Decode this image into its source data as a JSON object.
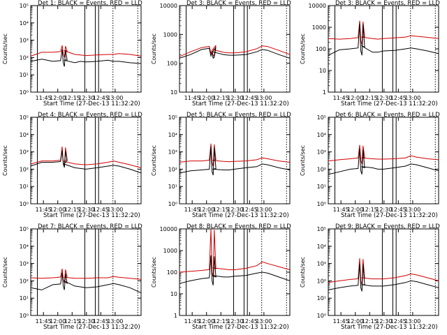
{
  "ylabel": "Counts/sec",
  "xlabel": "Start Time (27-Dec-13 11:32:20)",
  "legend_text": "BLACK = Events, RED = LLD",
  "series_colors": {
    "events": "#000000",
    "lld": "#d00000"
  },
  "x_ticks": [
    "11:45",
    "12:00",
    "12:15",
    "12:30",
    "12:45",
    "13:00"
  ],
  "chart_data": [
    {
      "type": "line",
      "title": "Det 1: BLACK = Events, RED = LLD",
      "ylog": true,
      "ylim": [
        1,
        100000
      ],
      "yticks": [
        {
          "v": 1,
          "l": "10⁰"
        },
        {
          "v": 10,
          "l": "10¹"
        },
        {
          "v": 100,
          "l": "10²"
        },
        {
          "v": 1000,
          "l": "10³"
        },
        {
          "v": 10000,
          "l": "10⁴"
        },
        {
          "v": 100000,
          "l": "10⁵"
        }
      ],
      "flare_peak": {
        "events": 300,
        "lld": 500
      },
      "x": [
        0,
        10,
        20,
        30,
        40,
        45,
        50,
        60,
        70,
        75,
        80,
        90,
        100
      ],
      "events": [
        60,
        80,
        60,
        70,
        50,
        60,
        55,
        60,
        70,
        60,
        60,
        50,
        45
      ],
      "lld": [
        120,
        200,
        200,
        250,
        150,
        140,
        130,
        140,
        150,
        150,
        170,
        150,
        120
      ]
    },
    {
      "type": "line",
      "title": "Det 3: BLACK = Events, RED = LLD",
      "ylog": true,
      "ylim": [
        10,
        10000
      ],
      "yticks": [
        {
          "v": 10,
          "l": "10"
        },
        {
          "v": 100,
          "l": "100"
        },
        {
          "v": 1000,
          "l": "1000"
        },
        {
          "v": 10000,
          "l": "10000"
        }
      ],
      "flare_peak": {
        "events": 180,
        "lld": 220
      },
      "x": [
        0,
        10,
        20,
        30,
        40,
        45,
        50,
        60,
        70,
        75,
        80,
        90,
        100
      ],
      "events": [
        150,
        200,
        300,
        250,
        200,
        190,
        190,
        200,
        250,
        300,
        280,
        200,
        150
      ],
      "lld": [
        170,
        250,
        350,
        300,
        240,
        230,
        230,
        250,
        320,
        400,
        380,
        280,
        200
      ]
    },
    {
      "type": "line",
      "title": "Det 3: BLACK = Events, RED = LLD",
      "ylog": true,
      "ylim": [
        1,
        10000
      ],
      "yticks": [
        {
          "v": 1,
          "l": "1"
        },
        {
          "v": 10,
          "l": "10"
        },
        {
          "v": 100,
          "l": "100"
        },
        {
          "v": 1000,
          "l": "1000"
        },
        {
          "v": 10000,
          "l": "10000"
        }
      ],
      "flare_peak": {
        "events": 1500,
        "lld": 2000
      },
      "x": [
        0,
        10,
        20,
        30,
        40,
        45,
        50,
        60,
        70,
        75,
        80,
        90,
        100
      ],
      "events": [
        50,
        90,
        100,
        140,
        70,
        70,
        80,
        85,
        100,
        110,
        100,
        80,
        60
      ],
      "lld": [
        300,
        280,
        300,
        350,
        300,
        280,
        300,
        320,
        350,
        400,
        380,
        340,
        300
      ]
    },
    {
      "type": "line",
      "title": "Det 4: BLACK = Events, RED = LLD",
      "ylog": true,
      "ylim": [
        1,
        100000
      ],
      "yticks": [
        {
          "v": 1,
          "l": "10⁰"
        },
        {
          "v": 10,
          "l": "10¹"
        },
        {
          "v": 100,
          "l": "10²"
        },
        {
          "v": 1000,
          "l": "10³"
        },
        {
          "v": 10000,
          "l": "10⁴"
        },
        {
          "v": 100000,
          "l": "10⁵"
        }
      ],
      "flare_peak": {
        "events": 1200,
        "lld": 2000
      },
      "x": [
        0,
        10,
        20,
        30,
        40,
        45,
        50,
        60,
        70,
        75,
        80,
        90,
        100
      ],
      "events": [
        150,
        250,
        250,
        200,
        120,
        110,
        100,
        120,
        150,
        170,
        150,
        100,
        60
      ],
      "lld": [
        200,
        300,
        300,
        280,
        200,
        190,
        180,
        200,
        250,
        300,
        250,
        180,
        120
      ]
    },
    {
      "type": "line",
      "title": "Det 5: BLACK = Events, RED = LLD",
      "ylog": true,
      "ylim": [
        1,
        100000
      ],
      "yticks": [
        {
          "v": 1,
          "l": "10⁰"
        },
        {
          "v": 10,
          "l": "10¹"
        },
        {
          "v": 100,
          "l": "10²"
        },
        {
          "v": 1000,
          "l": "10³"
        },
        {
          "v": 10000,
          "l": "10⁴"
        },
        {
          "v": 100000,
          "l": "10⁵"
        }
      ],
      "flare_peak": {
        "events": 2000,
        "lld": 3000
      },
      "x": [
        0,
        10,
        20,
        30,
        40,
        45,
        50,
        60,
        70,
        75,
        80,
        90,
        100
      ],
      "events": [
        60,
        80,
        90,
        100,
        90,
        90,
        100,
        120,
        140,
        200,
        180,
        120,
        90
      ],
      "lld": [
        250,
        300,
        300,
        320,
        280,
        270,
        280,
        300,
        350,
        450,
        400,
        300,
        250
      ]
    },
    {
      "type": "line",
      "title": "Det 6: BLACK = Events, RED = LLD",
      "ylog": true,
      "ylim": [
        1,
        100000
      ],
      "yticks": [
        {
          "v": 1,
          "l": "10⁰"
        },
        {
          "v": 10,
          "l": "10¹"
        },
        {
          "v": 100,
          "l": "10²"
        },
        {
          "v": 1000,
          "l": "10³"
        },
        {
          "v": 10000,
          "l": "10⁴"
        },
        {
          "v": 100000,
          "l": "10⁵"
        }
      ],
      "flare_peak": {
        "events": 1500,
        "lld": 2500
      },
      "x": [
        0,
        10,
        20,
        30,
        40,
        45,
        50,
        60,
        70,
        75,
        80,
        90,
        100
      ],
      "events": [
        50,
        70,
        100,
        140,
        120,
        100,
        100,
        120,
        150,
        200,
        180,
        120,
        80
      ],
      "lld": [
        300,
        350,
        400,
        450,
        400,
        380,
        380,
        400,
        450,
        600,
        500,
        400,
        350
      ]
    },
    {
      "type": "line",
      "title": "Det 7: BLACK = Events, RED = LLD",
      "ylog": true,
      "ylim": [
        1,
        100000
      ],
      "yticks": [
        {
          "v": 1,
          "l": "10⁰"
        },
        {
          "v": 10,
          "l": "10¹"
        },
        {
          "v": 100,
          "l": "10²"
        },
        {
          "v": 1000,
          "l": "10³"
        },
        {
          "v": 10000,
          "l": "10⁴"
        },
        {
          "v": 100000,
          "l": "10⁵"
        }
      ],
      "flare_peak": {
        "events": 300,
        "lld": 500
      },
      "x": [
        0,
        10,
        20,
        30,
        40,
        45,
        50,
        60,
        70,
        75,
        80,
        90,
        100
      ],
      "events": [
        40,
        30,
        60,
        100,
        50,
        45,
        40,
        45,
        60,
        70,
        60,
        40,
        20
      ],
      "lld": [
        150,
        140,
        150,
        160,
        140,
        140,
        140,
        150,
        150,
        180,
        160,
        140,
        120
      ]
    },
    {
      "type": "line",
      "title": "Det 8: BLACK = Events, RED = LLD",
      "ylog": true,
      "ylim": [
        1,
        10000
      ],
      "yticks": [
        {
          "v": 1,
          "l": "1"
        },
        {
          "v": 10,
          "l": "10"
        },
        {
          "v": 100,
          "l": "100"
        },
        {
          "v": 1000,
          "l": "1000"
        },
        {
          "v": 10000,
          "l": "10000"
        }
      ],
      "flare_peak": {
        "events": 600,
        "lld": 10000
      },
      "x": [
        0,
        10,
        20,
        30,
        40,
        45,
        50,
        60,
        70,
        75,
        80,
        90,
        100
      ],
      "events": [
        30,
        40,
        50,
        70,
        60,
        60,
        65,
        70,
        90,
        100,
        90,
        60,
        40
      ],
      "lld": [
        100,
        110,
        120,
        160,
        140,
        130,
        130,
        150,
        200,
        300,
        250,
        180,
        130
      ]
    },
    {
      "type": "line",
      "title": "Det 9: BLACK = Events, RED = LLD",
      "ylog": true,
      "ylim": [
        1,
        100000
      ],
      "yticks": [
        {
          "v": 1,
          "l": "10⁰"
        },
        {
          "v": 10,
          "l": "10¹"
        },
        {
          "v": 100,
          "l": "10²"
        },
        {
          "v": 1000,
          "l": "10³"
        },
        {
          "v": 10000,
          "l": "10⁴"
        },
        {
          "v": 100000,
          "l": "10⁵"
        }
      ],
      "flare_peak": {
        "events": 1000,
        "lld": 2000
      },
      "x": [
        0,
        10,
        20,
        30,
        40,
        45,
        50,
        60,
        70,
        75,
        80,
        90,
        100
      ],
      "events": [
        30,
        40,
        50,
        60,
        50,
        50,
        50,
        60,
        80,
        100,
        90,
        60,
        40
      ],
      "lld": [
        80,
        100,
        120,
        150,
        130,
        130,
        130,
        150,
        200,
        250,
        220,
        150,
        100
      ]
    }
  ]
}
